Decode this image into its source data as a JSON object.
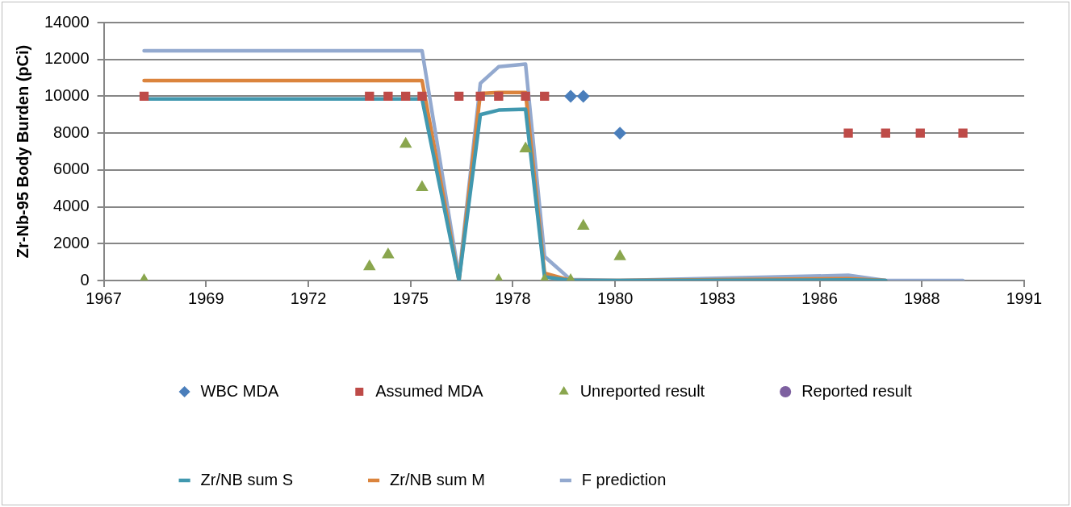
{
  "chart_data": {
    "type": "scatter",
    "ylabel": "Zr-Nb-95 Body Burden (pCi)",
    "xlim": [
      "1967-01-26",
      "1991-09-17"
    ],
    "xticks": [
      {
        "value": "1967-01-26",
        "label": "1967"
      },
      {
        "value": "1969-10-22",
        "label": "1969"
      },
      {
        "value": "1972-07-18",
        "label": "1972"
      },
      {
        "value": "1975-04-14",
        "label": "1975"
      },
      {
        "value": "1978-01-08",
        "label": "1978"
      },
      {
        "value": "1980-10-04",
        "label": "1980"
      },
      {
        "value": "1983-07-01",
        "label": "1983"
      },
      {
        "value": "1986-03-27",
        "label": "1986"
      },
      {
        "value": "1988-12-21",
        "label": "1988"
      },
      {
        "value": "1991-09-17",
        "label": "1991"
      }
    ],
    "ylim": [
      0,
      14000
    ],
    "yticks": [
      0,
      2000,
      4000,
      6000,
      8000,
      10000,
      12000,
      14000
    ],
    "grid": "y",
    "legend": "bottom",
    "series": [
      {
        "name": "WBC MDA",
        "type": "scatter",
        "marker": "diamond",
        "color": "#4a7ebb",
        "x": [
          "1979-07-27",
          "1979-11-28",
          "1980-11-20"
        ],
        "values": [
          10000,
          10000,
          8000
        ]
      },
      {
        "name": "Assumed MDA",
        "type": "scatter",
        "marker": "square",
        "color": "#be4b48",
        "x": [
          "1968-02-24",
          "1974-03-08",
          "1974-09-06",
          "1975-02-25",
          "1975-08-04",
          "1976-07-30",
          "1977-02-24",
          "1977-08-22",
          "1978-05-12",
          "1978-11-14",
          "1987-01-01",
          "1988-01-01",
          "1988-12-05",
          "1990-01-26"
        ],
        "values": [
          10000,
          10000,
          10000,
          10000,
          10000,
          10000,
          10000,
          10000,
          10000,
          10000,
          8000,
          8000,
          8000,
          8000
        ]
      },
      {
        "name": "Unreported result",
        "type": "scatter",
        "marker": "triangle",
        "color": "#8aa64e",
        "x": [
          "1968-02-24",
          "1974-03-08",
          "1974-09-06",
          "1975-02-25",
          "1975-08-04",
          "1977-08-22",
          "1978-05-12",
          "1978-11-14",
          "1979-07-27",
          "1979-11-28",
          "1980-11-20"
        ],
        "values": [
          0,
          750,
          1400,
          7400,
          5050,
          0,
          7150,
          0,
          0,
          2950,
          1300
        ]
      },
      {
        "name": "Reported result",
        "type": "scatter",
        "marker": "circle",
        "color": "#7d60a0"
      },
      {
        "name": "Zr/NB sum S",
        "type": "line",
        "marker": "none",
        "color": "#4198af",
        "x": [
          "1968-02-24",
          "1975-08-04",
          "1976-07-30",
          "1977-02-24",
          "1977-08-22",
          "1978-05-12",
          "1978-11-14",
          "1979-07-27",
          "1980-11-20",
          "1987-01-01",
          "1988-01-01"
        ],
        "values": [
          9850,
          9850,
          0,
          9000,
          9250,
          9300,
          200,
          0,
          0,
          30,
          0
        ]
      },
      {
        "name": "Zr/NB sum M",
        "type": "line",
        "marker": "none",
        "color": "#db843d",
        "x": [
          "1968-02-24",
          "1975-08-04",
          "1976-07-30",
          "1977-02-24",
          "1977-08-22",
          "1978-05-12",
          "1978-11-14",
          "1979-07-27",
          "1980-11-20",
          "1987-01-01",
          "1988-01-01"
        ],
        "values": [
          10850,
          10850,
          0,
          10150,
          10200,
          10200,
          400,
          0,
          0,
          100,
          0
        ]
      },
      {
        "name": "F prediction",
        "type": "line",
        "marker": "none",
        "color": "#93a9cf",
        "x": [
          "1968-02-24",
          "1975-08-04",
          "1976-07-30",
          "1977-02-24",
          "1977-08-22",
          "1978-05-12",
          "1978-11-14",
          "1979-07-27",
          "1980-11-20",
          "1987-01-01",
          "1988-01-01",
          "1988-12-05",
          "1990-01-26"
        ],
        "values": [
          12470,
          12470,
          200,
          10700,
          11600,
          11750,
          1300,
          50,
          0,
          280,
          0,
          0,
          0
        ]
      }
    ]
  }
}
